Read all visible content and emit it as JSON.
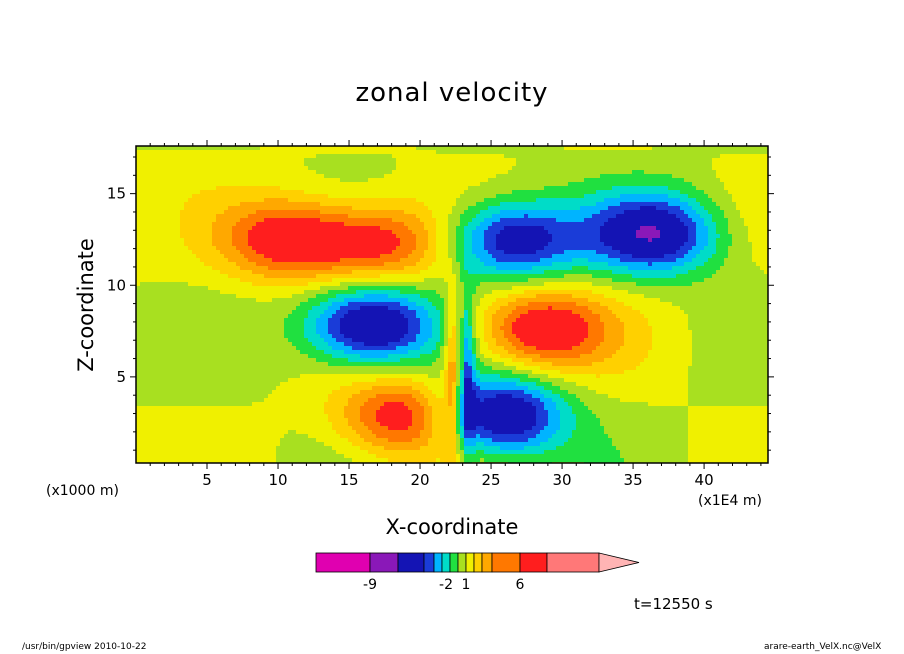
{
  "chart_data": {
    "type": "heatmap",
    "title": "zonal velocity",
    "xlabel": "X-coordinate",
    "ylabel": "Z-coordinate",
    "x_unit": "(x1E4 m)",
    "y_unit": "(x1000 m)",
    "x_ticks": [
      5,
      10,
      15,
      20,
      25,
      30,
      35,
      40
    ],
    "y_ticks": [
      5,
      10,
      15
    ],
    "xlim": [
      0,
      44.5
    ],
    "ylim": [
      0.3,
      17.6
    ],
    "colorbar": {
      "colors": [
        "#e000b0",
        "#8a18b8",
        "#1414b4",
        "#1a3cd8",
        "#00b4ff",
        "#00dcc8",
        "#20e040",
        "#a8e020",
        "#f0f000",
        "#ffd000",
        "#ffa800",
        "#ff7800",
        "#ff1e1e",
        "#ff7878",
        "#ffb4b4"
      ],
      "labels": [
        {
          "text": "-9",
          "value": -9
        },
        {
          "text": "-2",
          "value": -2
        },
        {
          "text": "1",
          "value": 1
        },
        {
          "text": "6",
          "value": 6
        }
      ]
    },
    "features": [
      {
        "x": 11,
        "z": 12.5,
        "sign": 1,
        "amp": 5.5
      },
      {
        "x": 17.5,
        "z": 12.3,
        "sign": 1,
        "amp": 4.5
      },
      {
        "x": 26.5,
        "z": 12.5,
        "sign": -1,
        "amp": 6.5
      },
      {
        "x": 36.5,
        "z": 12.8,
        "sign": -1,
        "amp": 6.5
      },
      {
        "x": 16.5,
        "z": 7.8,
        "sign": -1,
        "amp": 7.5
      },
      {
        "x": 28.5,
        "z": 7.6,
        "sign": 1,
        "amp": 5.8
      },
      {
        "x": 19,
        "z": 2.8,
        "sign": 1,
        "amp": 5.5
      },
      {
        "x": 25.5,
        "z": 2.8,
        "sign": -1,
        "amp": 7.5
      }
    ]
  },
  "time_label": "t=12550 s",
  "footer": {
    "left": "/usr/bin/gpview  2010-10-22",
    "right": "arare-earth_VelX.nc@VelX"
  }
}
